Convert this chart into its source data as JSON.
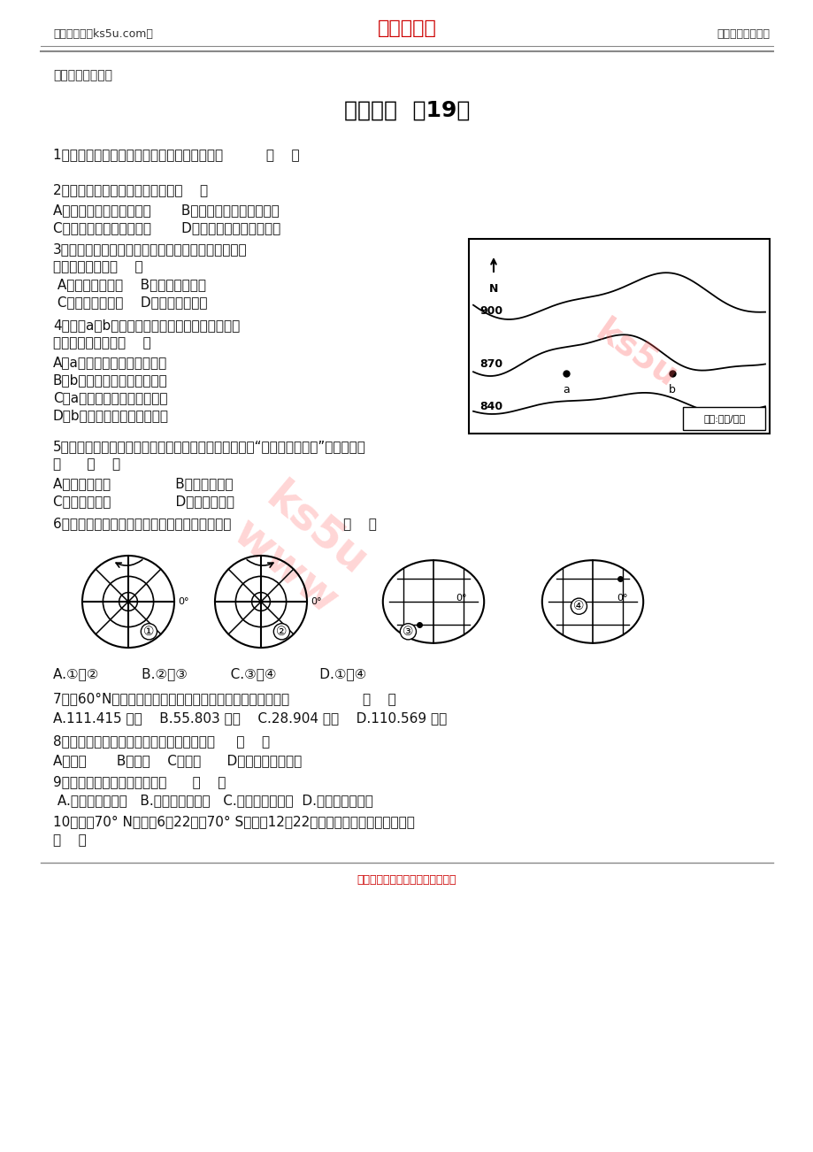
{
  "bg_color": "#ffffff",
  "header_left": "高考资源网（ks5u.com）",
  "header_center": "高考资源网",
  "header_right": "您身边的高考专家",
  "header_center_color": "#cc0000",
  "subtitle": "地理基础知识复习",
  "title": "地理精练  （19）",
  "footer": "高考资源网版权所有，侵权必究！",
  "footer_color": "#cc0000"
}
